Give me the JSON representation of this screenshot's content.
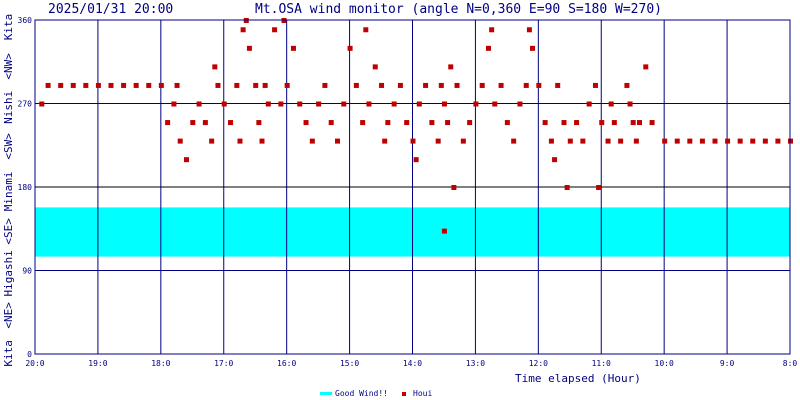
{
  "header": {
    "timestamp": "2025/01/31 20:00",
    "title": "Mt.OSA wind monitor (angle N=0,360 E=90 S=180 W=270)"
  },
  "chart_data": {
    "type": "scatter",
    "title": "Mt.OSA wind monitor (angle N=0,360 E=90 S=180 W=270)",
    "xlabel": "Time elapsed (Hour)",
    "ylabel": "Kita <NE> Higashi <SE> Minami <SW> Nishi <NW> Kita",
    "y_axis_words": [
      "Kita",
      "<NE>",
      "Higashi",
      "<SE>",
      "Minami",
      "<SW>",
      "Nishi",
      "<NW>",
      "Kita"
    ],
    "ylim": [
      0,
      360
    ],
    "yticks": [
      0,
      90,
      180,
      270,
      360
    ],
    "xlim": [
      20,
      8
    ],
    "xtick_labels": [
      "20:0",
      "19:0",
      "18:0",
      "17:0",
      "16:0",
      "15:0",
      "14:0",
      "13:0",
      "12:0",
      "11:0",
      "10:0",
      "9:0",
      "8:0"
    ],
    "grid": true,
    "good_wind_band": [
      105,
      158
    ],
    "colors": {
      "good_wind": "#00ffff",
      "points": "#c00000",
      "grid": "#000080",
      "frame": "#000080"
    },
    "legend": {
      "placement": "bottom-center",
      "items": [
        "Good Wind!!",
        "Houi"
      ]
    },
    "series": [
      {
        "name": "Houi",
        "points": [
          [
            19.9,
            270
          ],
          [
            19.8,
            290
          ],
          [
            19.6,
            290
          ],
          [
            19.4,
            290
          ],
          [
            19.2,
            290
          ],
          [
            19.0,
            290
          ],
          [
            18.8,
            290
          ],
          [
            18.6,
            290
          ],
          [
            18.4,
            290
          ],
          [
            18.2,
            290
          ],
          [
            18.0,
            290
          ],
          [
            17.9,
            250
          ],
          [
            17.8,
            270
          ],
          [
            17.75,
            290
          ],
          [
            17.7,
            230
          ],
          [
            17.6,
            210
          ],
          [
            17.5,
            250
          ],
          [
            17.4,
            270
          ],
          [
            17.3,
            250
          ],
          [
            17.2,
            230
          ],
          [
            17.15,
            310
          ],
          [
            17.1,
            290
          ],
          [
            17.0,
            270
          ],
          [
            16.9,
            250
          ],
          [
            16.8,
            290
          ],
          [
            16.75,
            230
          ],
          [
            16.7,
            350
          ],
          [
            16.65,
            360
          ],
          [
            16.6,
            330
          ],
          [
            16.5,
            290
          ],
          [
            16.45,
            250
          ],
          [
            16.4,
            230
          ],
          [
            16.35,
            290
          ],
          [
            16.3,
            270
          ],
          [
            16.2,
            350
          ],
          [
            16.1,
            270
          ],
          [
            16.05,
            360
          ],
          [
            16.0,
            290
          ],
          [
            15.9,
            330
          ],
          [
            15.8,
            270
          ],
          [
            15.7,
            250
          ],
          [
            15.6,
            230
          ],
          [
            15.5,
            270
          ],
          [
            15.4,
            290
          ],
          [
            15.3,
            250
          ],
          [
            15.2,
            230
          ],
          [
            15.1,
            270
          ],
          [
            15.0,
            330
          ],
          [
            14.9,
            290
          ],
          [
            14.8,
            250
          ],
          [
            14.75,
            350
          ],
          [
            14.7,
            270
          ],
          [
            14.6,
            310
          ],
          [
            14.5,
            290
          ],
          [
            14.45,
            230
          ],
          [
            14.4,
            250
          ],
          [
            14.3,
            270
          ],
          [
            14.2,
            290
          ],
          [
            14.1,
            250
          ],
          [
            14.0,
            230
          ],
          [
            13.95,
            210
          ],
          [
            13.9,
            270
          ],
          [
            13.8,
            290
          ],
          [
            13.7,
            250
          ],
          [
            13.6,
            230
          ],
          [
            13.55,
            290
          ],
          [
            13.5,
            270
          ],
          [
            13.45,
            250
          ],
          [
            13.4,
            310
          ],
          [
            13.35,
            180
          ],
          [
            13.3,
            290
          ],
          [
            13.2,
            230
          ],
          [
            13.1,
            250
          ],
          [
            13.0,
            270
          ],
          [
            12.9,
            290
          ],
          [
            12.8,
            330
          ],
          [
            12.75,
            350
          ],
          [
            12.7,
            270
          ],
          [
            12.6,
            290
          ],
          [
            12.5,
            250
          ],
          [
            12.4,
            230
          ],
          [
            12.3,
            270
          ],
          [
            12.2,
            290
          ],
          [
            12.15,
            350
          ],
          [
            12.1,
            330
          ],
          [
            12.0,
            290
          ],
          [
            11.9,
            250
          ],
          [
            11.8,
            230
          ],
          [
            11.75,
            210
          ],
          [
            11.7,
            290
          ],
          [
            11.6,
            250
          ],
          [
            11.55,
            180
          ],
          [
            11.5,
            230
          ],
          [
            11.4,
            250
          ],
          [
            11.3,
            230
          ],
          [
            11.2,
            270
          ],
          [
            11.1,
            290
          ],
          [
            11.05,
            180
          ],
          [
            11.0,
            250
          ],
          [
            10.9,
            230
          ],
          [
            10.85,
            270
          ],
          [
            10.8,
            250
          ],
          [
            10.7,
            230
          ],
          [
            10.6,
            290
          ],
          [
            10.55,
            270
          ],
          [
            10.5,
            250
          ],
          [
            10.45,
            230
          ],
          [
            10.4,
            250
          ],
          [
            10.3,
            310
          ],
          [
            10.2,
            250
          ],
          [
            10.0,
            230
          ],
          [
            9.8,
            230
          ],
          [
            9.6,
            230
          ],
          [
            9.4,
            230
          ],
          [
            9.2,
            230
          ],
          [
            9.0,
            230
          ],
          [
            8.8,
            230
          ],
          [
            8.6,
            230
          ],
          [
            8.4,
            230
          ],
          [
            8.2,
            230
          ],
          [
            8.0,
            230
          ],
          [
            13.5,
            133
          ]
        ]
      }
    ]
  }
}
